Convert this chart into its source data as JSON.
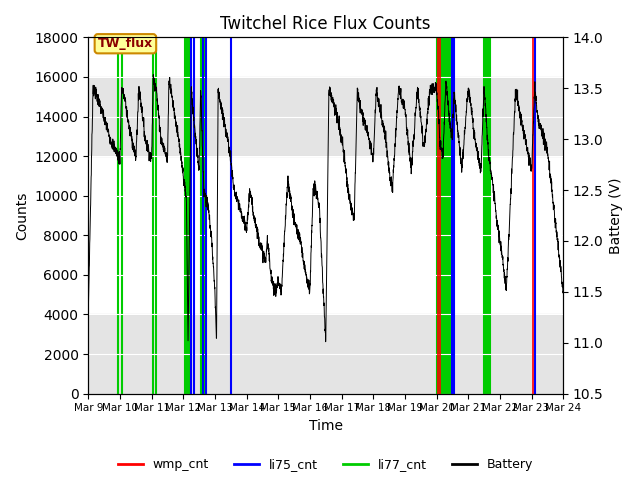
{
  "title": "Twitchel Rice Flux Counts",
  "xlabel": "Time",
  "ylabel_left": "Counts",
  "ylabel_right": "Battery (V)",
  "ylim_left": [
    0,
    18000
  ],
  "ylim_right": [
    10.5,
    14.0
  ],
  "yticks_left": [
    0,
    2000,
    4000,
    6000,
    8000,
    10000,
    12000,
    14000,
    16000,
    18000
  ],
  "yticks_right": [
    10.5,
    11.0,
    11.5,
    12.0,
    12.5,
    13.0,
    13.5,
    14.0
  ],
  "xtick_labels": [
    "Mar 9",
    "Mar 10",
    "Mar 11",
    "Mar 12",
    "Mar 13",
    "Mar 14",
    "Mar 15",
    "Mar 16",
    "Mar 17",
    "Mar 18",
    "Mar 19",
    "Mar 20",
    "Mar 21",
    "Mar 22",
    "Mar 23",
    "Mar 24"
  ],
  "annotation_text": "TW_flux",
  "bg_band1": [
    12000,
    16000
  ],
  "bg_band2": [
    0,
    4000
  ],
  "bg_color": "#d3d3d3",
  "wmp_color": "#ff0000",
  "li75_color": "#0000ff",
  "li77_color": "#00cc00",
  "battery_color": "#000000",
  "battery_nodes_x": [
    0.0,
    0.15,
    0.3,
    0.5,
    0.7,
    0.85,
    1.0,
    1.05,
    1.15,
    1.2,
    1.3,
    1.45,
    1.5,
    1.6,
    1.65,
    1.8,
    2.0,
    2.05,
    2.15,
    2.2,
    2.3,
    2.5,
    2.55,
    2.65,
    2.75,
    2.85,
    3.1,
    3.15,
    3.25,
    3.3,
    3.4,
    3.5,
    3.55,
    3.65,
    3.8,
    3.9,
    4.0,
    4.05,
    4.1,
    4.2,
    4.4,
    4.5,
    4.6,
    4.8,
    5.0,
    5.1,
    5.2,
    5.4,
    5.6,
    5.65,
    5.7,
    5.75,
    5.9,
    6.0,
    6.1,
    6.3,
    6.4,
    6.5,
    6.7,
    6.8,
    7.0,
    7.1,
    7.2,
    7.3,
    7.5,
    7.6,
    7.8,
    8.0,
    8.1,
    8.2,
    8.4,
    8.5,
    8.6,
    8.8,
    9.0,
    9.1,
    9.2,
    9.4,
    9.5,
    9.6,
    9.8,
    10.0,
    10.1,
    10.2,
    10.4,
    10.5,
    10.6,
    10.8,
    11.0,
    11.05,
    11.1,
    11.2,
    11.3,
    11.35,
    11.4,
    11.5,
    11.55,
    11.6,
    11.7,
    11.8,
    12.0,
    12.1,
    12.2,
    12.4,
    12.5,
    12.55,
    12.6,
    12.7,
    12.8,
    12.9,
    13.0,
    13.1,
    13.2,
    13.5,
    13.6,
    13.8,
    14.0,
    14.1,
    14.2,
    14.5,
    15.0
  ],
  "battery_nodes_y": [
    11.3,
    13.5,
    13.4,
    13.2,
    13.0,
    12.9,
    12.8,
    13.5,
    13.4,
    13.3,
    13.1,
    12.9,
    12.8,
    13.5,
    13.4,
    13.0,
    12.8,
    13.6,
    13.5,
    13.3,
    13.0,
    12.8,
    13.6,
    13.4,
    13.2,
    13.0,
    12.4,
    11.0,
    13.5,
    13.3,
    13.0,
    12.7,
    13.5,
    12.5,
    12.3,
    12.0,
    11.5,
    11.0,
    13.5,
    13.3,
    13.0,
    12.8,
    12.5,
    12.3,
    12.1,
    12.5,
    12.3,
    12.0,
    11.8,
    12.0,
    11.9,
    11.7,
    11.5,
    11.6,
    11.5,
    12.6,
    12.4,
    12.2,
    12.0,
    11.8,
    11.5,
    12.5,
    12.5,
    12.3,
    11.0,
    13.5,
    13.3,
    13.0,
    12.8,
    12.5,
    12.2,
    13.5,
    13.3,
    13.1,
    12.8,
    13.5,
    13.3,
    13.0,
    12.7,
    12.5,
    13.5,
    13.3,
    13.0,
    12.7,
    13.5,
    13.2,
    12.9,
    13.5,
    13.5,
    13.3,
    13.0,
    12.8,
    13.6,
    13.4,
    13.2,
    13.0,
    13.5,
    13.3,
    13.0,
    12.7,
    13.5,
    13.3,
    13.0,
    12.7,
    13.5,
    13.3,
    13.0,
    12.7,
    12.5,
    12.2,
    12.0,
    11.8,
    11.5,
    13.5,
    13.3,
    13.0,
    12.7,
    13.5,
    13.2,
    12.9,
    11.5
  ],
  "li77_spikes": [
    0.95,
    1.05,
    2.05,
    2.15,
    3.05,
    3.12,
    3.18,
    3.22,
    3.55,
    3.62,
    3.68,
    11.0,
    11.05,
    11.1,
    11.15,
    11.2,
    11.25,
    11.3,
    11.35,
    11.4,
    11.45,
    12.5,
    12.55,
    12.6,
    12.65,
    12.7
  ],
  "li75_spikes": [
    3.25,
    3.35,
    3.62,
    3.72,
    4.5,
    11.5,
    11.55,
    14.1
  ],
  "wmp_spikes": [
    11.05,
    11.1,
    14.05
  ]
}
